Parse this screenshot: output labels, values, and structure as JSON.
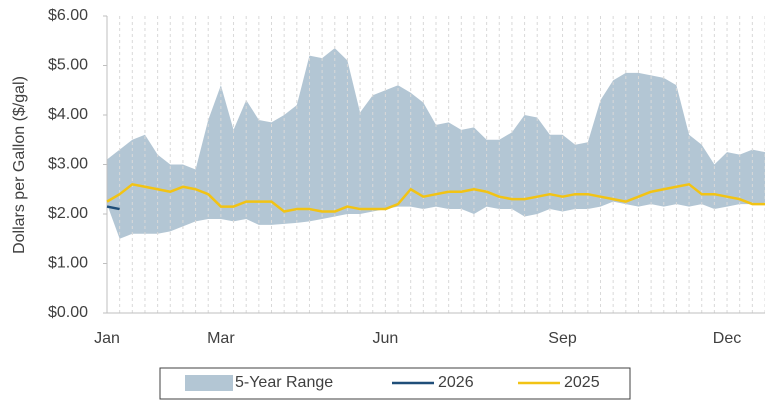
{
  "chart_data": {
    "type": "line",
    "y_label": "Dollars per Gallon ($/gal)",
    "categories": [
      "Jan",
      null,
      null,
      null,
      null,
      null,
      null,
      null,
      null,
      "Mar",
      null,
      null,
      null,
      null,
      null,
      null,
      null,
      null,
      null,
      null,
      null,
      null,
      "Jun",
      null,
      null,
      null,
      null,
      null,
      null,
      null,
      null,
      null,
      null,
      null,
      null,
      null,
      "Sep",
      null,
      null,
      null,
      null,
      null,
      null,
      null,
      null,
      null,
      null,
      null,
      null,
      "Dec",
      null,
      null,
      null
    ],
    "ylim": [
      0,
      6
    ],
    "yticks": [
      {
        "value": 0,
        "label": "$0.00"
      },
      {
        "value": 1,
        "label": "$1.00"
      },
      {
        "value": 2,
        "label": "$2.00"
      },
      {
        "value": 3,
        "label": "$3.00"
      },
      {
        "value": 4,
        "label": "$4.00"
      },
      {
        "value": 5,
        "label": "$5.00"
      },
      {
        "value": 6,
        "label": "$6.00"
      }
    ],
    "vertical_grid": true,
    "legend": "bottom",
    "series": [
      {
        "name": "5-Year Range",
        "kind": "range",
        "color": "#b3c6d4",
        "high": [
          3.1,
          3.3,
          3.5,
          3.6,
          3.2,
          3.0,
          3.0,
          2.9,
          3.9,
          4.6,
          3.7,
          4.3,
          3.9,
          3.85,
          4.0,
          4.2,
          5.2,
          5.15,
          5.35,
          5.1,
          4.05,
          4.4,
          4.5,
          4.6,
          4.45,
          4.25,
          3.8,
          3.85,
          3.7,
          3.75,
          3.5,
          3.5,
          3.65,
          4.0,
          3.95,
          3.6,
          3.6,
          3.4,
          3.45,
          4.3,
          4.7,
          4.85,
          4.85,
          4.8,
          4.75,
          4.6,
          3.6,
          3.4,
          3.0,
          3.25,
          3.2,
          3.3,
          3.25
        ],
        "low": [
          2.2,
          1.5,
          1.6,
          1.6,
          1.6,
          1.65,
          1.75,
          1.85,
          1.9,
          1.9,
          1.85,
          1.9,
          1.78,
          1.78,
          1.8,
          1.82,
          1.85,
          1.9,
          1.95,
          2.0,
          2.0,
          2.05,
          2.1,
          2.15,
          2.15,
          2.1,
          2.15,
          2.1,
          2.1,
          2.0,
          2.15,
          2.1,
          2.1,
          1.95,
          2.0,
          2.1,
          2.05,
          2.1,
          2.1,
          2.15,
          2.25,
          2.2,
          2.15,
          2.2,
          2.15,
          2.2,
          2.15,
          2.2,
          2.1,
          2.15,
          2.2,
          2.2,
          2.2
        ]
      },
      {
        "name": "2026",
        "color": "#1f4e79",
        "values": [
          2.15,
          2.1,
          null,
          null,
          null,
          null,
          null,
          null,
          null,
          null,
          null,
          null,
          null,
          null,
          null,
          null,
          null,
          null,
          null,
          null,
          null,
          null,
          null,
          null,
          null,
          null,
          null,
          null,
          null,
          null,
          null,
          null,
          null,
          null,
          null,
          null,
          null,
          null,
          null,
          null,
          null,
          null,
          null,
          null,
          null,
          null,
          null,
          null,
          null,
          null,
          null,
          null,
          null
        ]
      },
      {
        "name": "2025",
        "color": "#f2c314",
        "values": [
          2.25,
          2.4,
          2.6,
          2.55,
          2.5,
          2.45,
          2.55,
          2.5,
          2.4,
          2.15,
          2.15,
          2.25,
          2.25,
          2.25,
          2.05,
          2.1,
          2.1,
          2.05,
          2.05,
          2.15,
          2.1,
          2.1,
          2.1,
          2.2,
          2.5,
          2.35,
          2.4,
          2.45,
          2.45,
          2.5,
          2.45,
          2.35,
          2.3,
          2.3,
          2.35,
          2.4,
          2.35,
          2.4,
          2.4,
          2.35,
          2.3,
          2.25,
          2.35,
          2.45,
          2.5,
          2.55,
          2.6,
          2.4,
          2.4,
          2.35,
          2.3,
          2.2,
          2.2
        ]
      }
    ]
  }
}
